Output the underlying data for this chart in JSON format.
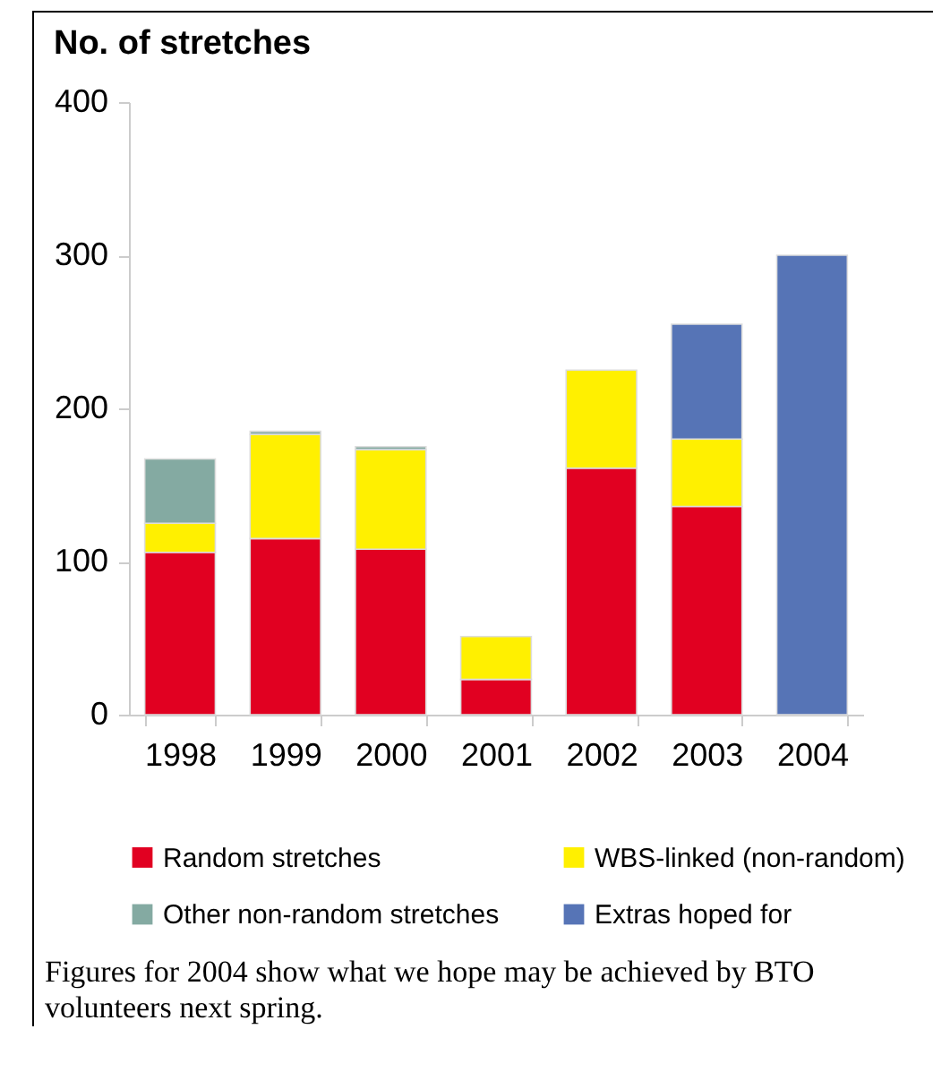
{
  "chart_data": {
    "type": "bar",
    "stacked": true,
    "title": "No. of stretches",
    "categories": [
      "1998",
      "1999",
      "2000",
      "2001",
      "2002",
      "2003",
      "2004"
    ],
    "series": [
      {
        "name": "Random stretches",
        "color": "#e10021",
        "values": [
          106,
          115,
          108,
          23,
          161,
          136,
          null
        ]
      },
      {
        "name": "WBS-linked (non-random)",
        "color": "#fff000",
        "values": [
          19,
          68,
          65,
          28,
          64,
          44,
          null
        ]
      },
      {
        "name": "Other non-random stretches",
        "color": "#84aaa2",
        "values": [
          42,
          2,
          2,
          null,
          null,
          null,
          null
        ]
      },
      {
        "name": "Extras hoped for",
        "color": "#5674b6",
        "values": [
          null,
          null,
          null,
          null,
          null,
          75,
          300
        ]
      }
    ],
    "ylim": [
      0,
      400
    ],
    "yticks": [
      0,
      100,
      200,
      300,
      400
    ],
    "grid": false,
    "legend": "bottom",
    "annotations": [
      "Figures for 2004 show what we hope may be achieved by BTO volunteers next spring."
    ]
  }
}
